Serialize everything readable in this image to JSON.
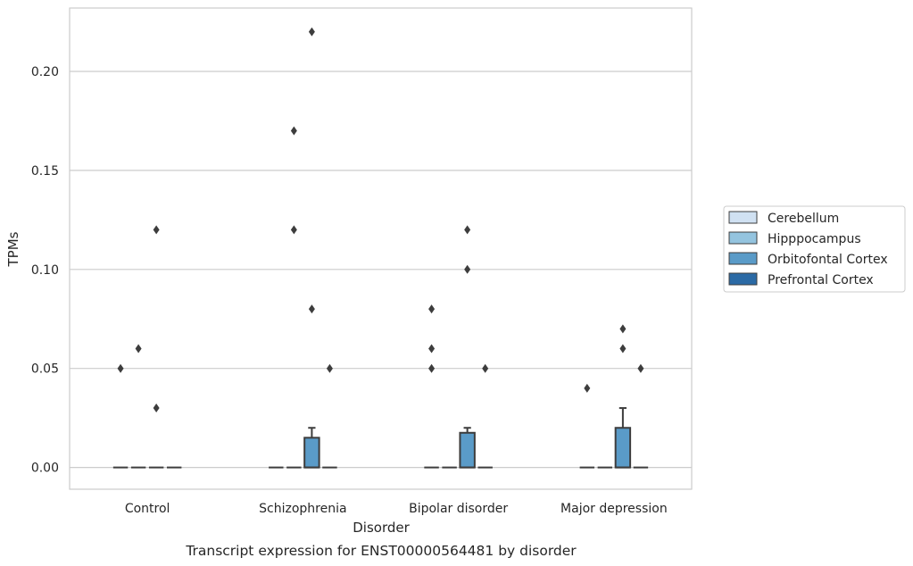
{
  "chart_data": {
    "type": "box",
    "title": "",
    "caption": "Transcript expression for ENST00000564481 by disorder",
    "xlabel": "Disorder",
    "ylabel": "TPMs",
    "ylim": [
      -0.011,
      0.232
    ],
    "yticks": [
      0.0,
      0.05,
      0.1,
      0.15,
      0.2
    ],
    "ytick_labels": [
      "0.00",
      "0.05",
      "0.10",
      "0.15",
      "0.20"
    ],
    "grid": "horizontal",
    "legend_position": "right",
    "categories": [
      "Control",
      "Schizophrenia",
      "Bipolar disorder",
      "Major depression"
    ],
    "series": [
      {
        "name": "Cerebellum",
        "color": "#d0e1f2",
        "boxes": [
          {
            "q1": 0,
            "median": 0,
            "q3": 0,
            "whisker_low": 0,
            "whisker_high": 0,
            "outliers": [
              0.05
            ]
          },
          {
            "q1": 0,
            "median": 0,
            "q3": 0,
            "whisker_low": 0,
            "whisker_high": 0,
            "outliers": []
          },
          {
            "q1": 0,
            "median": 0,
            "q3": 0,
            "whisker_low": 0,
            "whisker_high": 0,
            "outliers": [
              0.05,
              0.06,
              0.08
            ]
          },
          {
            "q1": 0,
            "median": 0,
            "q3": 0,
            "whisker_low": 0,
            "whisker_high": 0,
            "outliers": [
              0.04
            ]
          }
        ]
      },
      {
        "name": "Hipppocampus",
        "color": "#94c4df",
        "boxes": [
          {
            "q1": 0,
            "median": 0,
            "q3": 0,
            "whisker_low": 0,
            "whisker_high": 0,
            "outliers": [
              0.06
            ]
          },
          {
            "q1": 0,
            "median": 0,
            "q3": 0,
            "whisker_low": 0,
            "whisker_high": 0,
            "outliers": [
              0.12,
              0.17
            ]
          },
          {
            "q1": 0,
            "median": 0,
            "q3": 0,
            "whisker_low": 0,
            "whisker_high": 0,
            "outliers": []
          },
          {
            "q1": 0,
            "median": 0,
            "q3": 0,
            "whisker_low": 0,
            "whisker_high": 0,
            "outliers": []
          }
        ]
      },
      {
        "name": "Orbitofontal Cortex",
        "color": "#5a9bc8",
        "boxes": [
          {
            "q1": 0,
            "median": 0,
            "q3": 0,
            "whisker_low": 0,
            "whisker_high": 0,
            "outliers": [
              0.03,
              0.12
            ]
          },
          {
            "q1": 0,
            "median": 0,
            "q3": 0.015,
            "whisker_low": 0,
            "whisker_high": 0.02,
            "outliers": [
              0.08,
              0.22
            ]
          },
          {
            "q1": 0,
            "median": 0,
            "q3": 0.0175,
            "whisker_low": 0,
            "whisker_high": 0.02,
            "outliers": [
              0.1,
              0.12
            ]
          },
          {
            "q1": 0,
            "median": 0,
            "q3": 0.02,
            "whisker_low": 0,
            "whisker_high": 0.03,
            "outliers": [
              0.06,
              0.07
            ]
          }
        ]
      },
      {
        "name": "Prefrontal Cortex",
        "color": "#2b6aa5",
        "boxes": [
          {
            "q1": 0,
            "median": 0,
            "q3": 0,
            "whisker_low": 0,
            "whisker_high": 0,
            "outliers": []
          },
          {
            "q1": 0,
            "median": 0,
            "q3": 0,
            "whisker_low": 0,
            "whisker_high": 0,
            "outliers": [
              0.05
            ]
          },
          {
            "q1": 0,
            "median": 0,
            "q3": 0,
            "whisker_low": 0,
            "whisker_high": 0,
            "outliers": [
              0.05
            ]
          },
          {
            "q1": 0,
            "median": 0,
            "q3": 0,
            "whisker_low": 0,
            "whisker_high": 0,
            "outliers": [
              0.05
            ]
          }
        ]
      }
    ]
  }
}
